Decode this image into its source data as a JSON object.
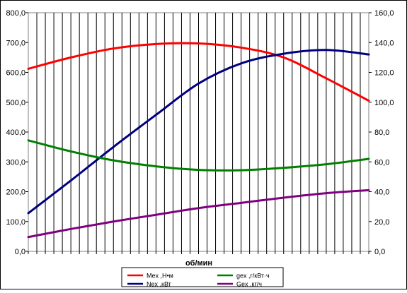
{
  "chart_data": {
    "type": "line",
    "xlabel": "об/мин",
    "x_tick_labels": [],
    "x_count": 40,
    "left_axis": {
      "range": [
        0,
        800
      ],
      "ticks": [
        "0,0",
        "100,0",
        "200,0",
        "300,0",
        "400,0",
        "500,0",
        "600,0",
        "700,0",
        "800,0"
      ],
      "tick_values": [
        0,
        100,
        200,
        300,
        400,
        500,
        600,
        700,
        800
      ]
    },
    "right_axis": {
      "range": [
        0,
        160
      ],
      "ticks": [
        "0,0",
        "20,0",
        "40,0",
        "60,0",
        "80,0",
        "100,0",
        "120,0",
        "140,0",
        "160,0"
      ],
      "tick_values": [
        0,
        20,
        40,
        60,
        80,
        100,
        120,
        140,
        160
      ]
    },
    "grid": {
      "vertical": true,
      "horizontal": false
    },
    "legend_position": "bottom",
    "series": [
      {
        "name": "Mex ,Н•м",
        "axis": "left",
        "color": "#ff0000",
        "points": [
          [
            0,
            612
          ],
          [
            5,
            650
          ],
          [
            10,
            680
          ],
          [
            15,
            695
          ],
          [
            20,
            697
          ],
          [
            25,
            683
          ],
          [
            30,
            650
          ],
          [
            35,
            580
          ],
          [
            40,
            505
          ]
        ]
      },
      {
        "name": "Nex ,кВт",
        "axis": "right",
        "color": "#000080",
        "points": [
          [
            0,
            25.6
          ],
          [
            5,
            47.5
          ],
          [
            10,
            70.0
          ],
          [
            15,
            91.5
          ],
          [
            20,
            112.5
          ],
          [
            25,
            126.0
          ],
          [
            30,
            132.5
          ],
          [
            35,
            135.0
          ],
          [
            40,
            132.0
          ]
        ]
      },
      {
        "name": "gex ,г/кВт·ч",
        "axis": "left",
        "color": "#008000",
        "points": [
          [
            0,
            372
          ],
          [
            5,
            335
          ],
          [
            10,
            305
          ],
          [
            15,
            285
          ],
          [
            20,
            273
          ],
          [
            25,
            272
          ],
          [
            30,
            280
          ],
          [
            35,
            292
          ],
          [
            40,
            310
          ]
        ]
      },
      {
        "name": "Gex ,кг/ч",
        "axis": "right",
        "color": "#800080",
        "points": [
          [
            0,
            9.6
          ],
          [
            5,
            15.0
          ],
          [
            10,
            20.0
          ],
          [
            15,
            24.5
          ],
          [
            20,
            29.0
          ],
          [
            25,
            32.5
          ],
          [
            30,
            36.0
          ],
          [
            35,
            39.0
          ],
          [
            40,
            41.0
          ]
        ]
      }
    ]
  }
}
